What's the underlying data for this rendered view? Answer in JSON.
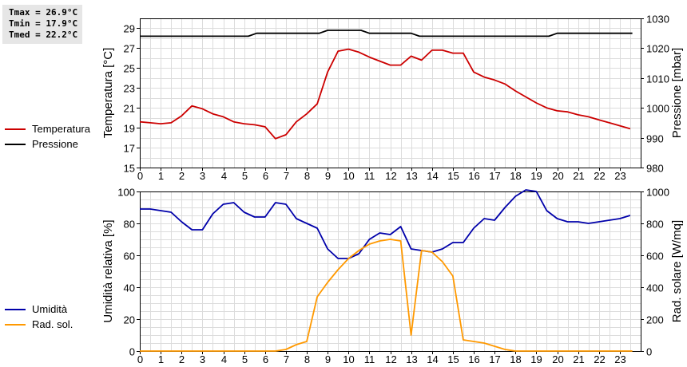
{
  "stats": {
    "tmax": "Tmax = 26.9°C",
    "tmin": "Tmin = 17.9°C",
    "tmed": "Tmed = 22.2°C"
  },
  "legend_top": [
    {
      "label": "Temperatura",
      "color": "#cc0000"
    },
    {
      "label": "Pressione",
      "color": "#000000"
    }
  ],
  "legend_bottom": [
    {
      "label": "Umidità",
      "color": "#0000aa"
    },
    {
      "label": "Rad. sol.",
      "color": "#ff9900"
    }
  ],
  "chart_data": [
    {
      "type": "line",
      "xlim": [
        0,
        24
      ],
      "xticks": [
        0,
        1,
        2,
        3,
        4,
        5,
        6,
        7,
        8,
        9,
        10,
        11,
        12,
        13,
        14,
        15,
        16,
        17,
        18,
        19,
        20,
        21,
        22,
        23
      ],
      "ylabel_left": "Temperatura [°C]",
      "ylim_left": [
        15,
        30
      ],
      "yticks_left": [
        15,
        17,
        19,
        21,
        23,
        25,
        27,
        29
      ],
      "ylabel_right": "Pressione [mbar]",
      "ylim_right": [
        980,
        1030
      ],
      "yticks_right": [
        980,
        990,
        1000,
        1010,
        1020,
        1030
      ],
      "grid": true,
      "series": [
        {
          "name": "Temperatura",
          "axis": "left",
          "color": "#cc0000",
          "x": [
            0,
            0.5,
            1,
            1.5,
            2,
            2.5,
            3,
            3.5,
            4,
            4.5,
            5,
            5.5,
            6,
            6.5,
            7,
            7.5,
            8,
            8.5,
            9,
            9.5,
            10,
            10.5,
            11,
            11.5,
            12,
            12.5,
            13,
            13.5,
            14,
            14.5,
            15,
            15.5,
            16,
            16.5,
            17,
            17.5,
            18,
            18.5,
            19,
            19.5,
            20,
            20.5,
            21,
            21.5,
            22,
            22.5,
            23,
            23.5
          ],
          "values": [
            19.6,
            19.5,
            19.4,
            19.5,
            20.2,
            21.2,
            20.9,
            20.4,
            20.1,
            19.6,
            19.4,
            19.3,
            19.1,
            17.9,
            18.3,
            19.6,
            20.4,
            21.4,
            24.6,
            26.7,
            26.9,
            26.6,
            26.1,
            25.7,
            25.3,
            25.3,
            26.2,
            25.8,
            26.8,
            26.8,
            26.5,
            26.5,
            24.6,
            24.1,
            23.8,
            23.4,
            22.7,
            22.1,
            21.5,
            21.0,
            20.7,
            20.6,
            20.3,
            20.1,
            19.8,
            19.5,
            19.2,
            18.9
          ]
        },
        {
          "name": "Pressione",
          "axis": "right",
          "color": "#000000",
          "x": [
            0,
            5.2,
            5.6,
            8.6,
            9,
            10.6,
            11,
            13,
            13.4,
            19.6,
            20,
            23.6
          ],
          "values": [
            1024,
            1024,
            1025,
            1025,
            1026,
            1026,
            1025,
            1025,
            1024,
            1024,
            1025,
            1025
          ]
        }
      ]
    },
    {
      "type": "line",
      "xlim": [
        0,
        24
      ],
      "xticks": [
        0,
        1,
        2,
        3,
        4,
        5,
        6,
        7,
        8,
        9,
        10,
        11,
        12,
        13,
        14,
        15,
        16,
        17,
        18,
        19,
        20,
        21,
        22,
        23
      ],
      "ylabel_left": "Umidità relativa [%]",
      "ylim_left": [
        0,
        100
      ],
      "yticks_left": [
        0,
        20,
        40,
        60,
        80,
        100
      ],
      "ylabel_right": "Rad. solare [W/mq]",
      "ylim_right": [
        0,
        1000
      ],
      "yticks_right": [
        0,
        200,
        400,
        600,
        800,
        1000
      ],
      "grid": true,
      "series": [
        {
          "name": "Umidità",
          "axis": "left",
          "color": "#0000aa",
          "x": [
            0,
            0.5,
            1,
            1.5,
            2,
            2.5,
            3,
            3.5,
            4,
            4.5,
            5,
            5.5,
            6,
            6.5,
            7,
            7.5,
            8,
            8.5,
            9,
            9.5,
            10,
            10.5,
            11,
            11.5,
            12,
            12.5,
            13,
            13.5,
            14,
            14.5,
            15,
            15.5,
            16,
            16.5,
            17,
            17.5,
            18,
            18.5,
            19,
            19.5,
            20,
            20.5,
            21,
            21.5,
            22,
            22.5,
            23,
            23.5
          ],
          "values": [
            89,
            89,
            88,
            87,
            81,
            76,
            76,
            86,
            92,
            93,
            87,
            84,
            84,
            93,
            92,
            83,
            80,
            77,
            64,
            58,
            58,
            61,
            70,
            74,
            73,
            78,
            64,
            63,
            62,
            64,
            68,
            68,
            77,
            83,
            82,
            90,
            97,
            101,
            100,
            88,
            83,
            81,
            81,
            80,
            81,
            82,
            83,
            85
          ]
        },
        {
          "name": "Rad. sol.",
          "axis": "right",
          "color": "#ff9900",
          "x": [
            0,
            6.5,
            7,
            7.5,
            8,
            8.5,
            9,
            9.5,
            10,
            10.5,
            11,
            11.5,
            12,
            12.5,
            13,
            13.5,
            14,
            14.5,
            15,
            15.5,
            16,
            16.5,
            17,
            17.5,
            18,
            23.6
          ],
          "values": [
            0,
            0,
            10,
            40,
            60,
            340,
            430,
            510,
            580,
            630,
            670,
            690,
            700,
            690,
            100,
            630,
            620,
            560,
            470,
            70,
            60,
            50,
            30,
            10,
            0,
            0
          ]
        }
      ]
    }
  ]
}
